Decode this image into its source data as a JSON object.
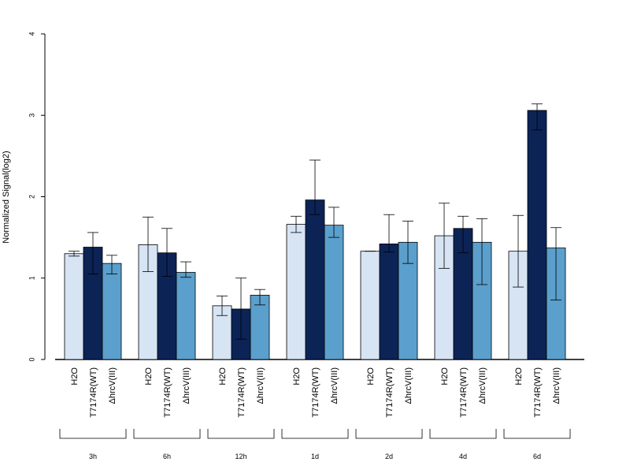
{
  "chart_data": {
    "type": "bar",
    "title": "",
    "xlabel": "",
    "ylabel": "Normalized Signal(log2)",
    "ylim": [
      0,
      4
    ],
    "yticks": [
      0,
      1,
      2,
      3,
      4
    ],
    "bar_labels": [
      "H2O",
      "T7174R(WT)",
      "ΔhrcV(III)"
    ],
    "groups": [
      "3h",
      "6h",
      "12h",
      "1d",
      "2d",
      "4d",
      "6d"
    ],
    "series": [
      {
        "name": "H2O",
        "color": "#d6e4f4",
        "values": [
          1.3,
          1.41,
          0.66,
          1.66,
          1.33,
          1.52,
          1.33
        ],
        "err_low": [
          1.27,
          1.08,
          0.54,
          1.56,
          1.33,
          1.12,
          0.89
        ],
        "err_high": [
          1.33,
          1.75,
          0.78,
          1.76,
          1.33,
          1.92,
          1.77
        ]
      },
      {
        "name": "T7174R(WT)",
        "color": "#0c2356",
        "values": [
          1.38,
          1.31,
          0.62,
          1.96,
          1.42,
          1.61,
          3.06
        ],
        "err_low": [
          1.05,
          1.02,
          0.25,
          1.78,
          1.32,
          1.31,
          2.82
        ],
        "err_high": [
          1.56,
          1.61,
          1.0,
          2.45,
          1.78,
          1.76,
          3.14
        ]
      },
      {
        "name": "ΔhrcV(III)",
        "color": "#5b9fcc",
        "values": [
          1.18,
          1.07,
          0.79,
          1.65,
          1.44,
          1.44,
          1.37
        ],
        "err_low": [
          1.05,
          1.01,
          0.67,
          1.5,
          1.18,
          0.92,
          0.73
        ],
        "err_high": [
          1.28,
          1.2,
          0.86,
          1.87,
          1.7,
          1.73,
          1.62
        ]
      }
    ]
  }
}
